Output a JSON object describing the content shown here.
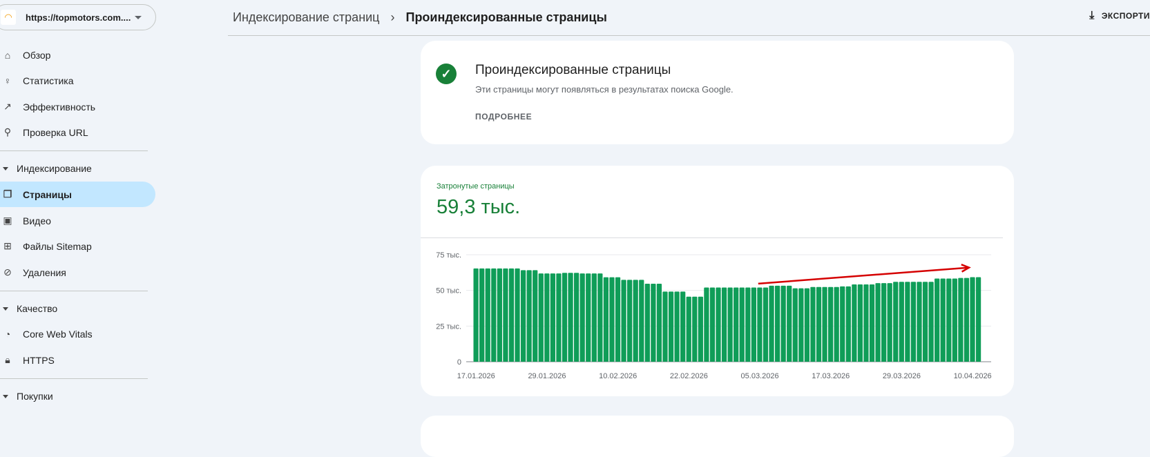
{
  "sidebar": {
    "property_url": "https://topmotors.com....",
    "items": [
      {
        "label": "Обзор",
        "icon": "home-icon"
      },
      {
        "label": "Статистика",
        "icon": "lightbulb-icon"
      },
      {
        "label": "Эффективность",
        "icon": "trending-up-icon"
      },
      {
        "label": "Проверка URL",
        "icon": "search-icon"
      }
    ],
    "sections": [
      {
        "label": "Индексирование",
        "items": [
          {
            "label": "Страницы",
            "icon": "pages-icon",
            "active": true
          },
          {
            "label": "Видео",
            "icon": "video-icon"
          },
          {
            "label": "Файлы Sitemap",
            "icon": "sitemap-icon"
          },
          {
            "label": "Удаления",
            "icon": "eye-off-icon"
          }
        ]
      },
      {
        "label": "Качество",
        "items": [
          {
            "label": "Core Web Vitals",
            "icon": "speedometer-icon"
          },
          {
            "label": "HTTPS",
            "icon": "lock-icon"
          }
        ]
      },
      {
        "label": "Покупки",
        "items": []
      }
    ]
  },
  "header": {
    "breadcrumb_parent": "Индексирование страниц",
    "breadcrumb_current": "Проиндексированные страницы",
    "export_label": "ЭКСПОРТИ"
  },
  "summary_card": {
    "title": "Проиндексированные страницы",
    "subtitle": "Эти страницы могут появляться в результатах поиска Google.",
    "more_label": "ПОДРОБНЕЕ"
  },
  "metric": {
    "label": "Затронутые страницы",
    "value": "59,3 тыс.",
    "color": "#188038"
  },
  "chart_data": {
    "type": "bar",
    "bar_color": "#0f9d58",
    "annotation": {
      "type": "arrow",
      "color": "#d50000",
      "description_from": "05.03.2026",
      "description_to": "12.04.2026"
    },
    "start_date": "17.01.2026",
    "x_tick_labels": [
      "17.01.2026",
      "29.01.2026",
      "10.02.2026",
      "22.02.2026",
      "05.03.2026",
      "17.03.2026",
      "29.03.2026",
      "10.04.2026"
    ],
    "y_tick_labels": [
      "0",
      "25 тыс.",
      "50 тыс.",
      "75 тыс."
    ],
    "y_ticks": [
      0,
      25000,
      50000,
      75000
    ],
    "ylim": [
      0,
      75000
    ],
    "grid": true,
    "values": [
      65400,
      65400,
      65400,
      65400,
      65400,
      65400,
      65400,
      65400,
      64200,
      64200,
      64200,
      61900,
      61900,
      61900,
      61900,
      62300,
      62300,
      62300,
      61900,
      61900,
      61900,
      61900,
      59200,
      59200,
      59200,
      57400,
      57400,
      57400,
      57400,
      54700,
      54700,
      54700,
      49200,
      49200,
      49200,
      49200,
      45600,
      45600,
      45600,
      52000,
      52000,
      52000,
      52000,
      52000,
      52000,
      52000,
      52000,
      52000,
      52000,
      52000,
      53300,
      53300,
      53300,
      53300,
      51500,
      51500,
      51500,
      52400,
      52400,
      52400,
      52400,
      52400,
      52800,
      52800,
      54200,
      54200,
      54200,
      54200,
      55100,
      55100,
      55100,
      56000,
      56000,
      56000,
      56000,
      56000,
      56000,
      56000,
      58300,
      58300,
      58300,
      58300,
      58700,
      58700,
      59300,
      59300
    ]
  }
}
